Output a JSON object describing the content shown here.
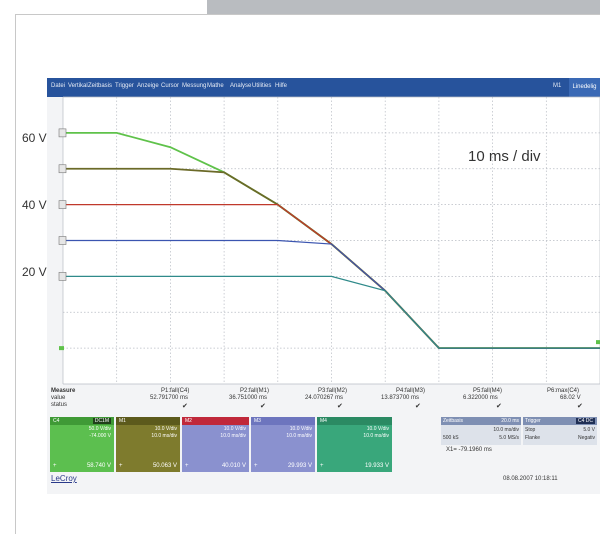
{
  "menu": {
    "items": [
      "Datei",
      "Vertikal",
      "Zeitbasis",
      "Trigger",
      "Anzeige",
      "Cursor",
      "Messung",
      "Mathe",
      "Analyse",
      "Utilities",
      "Hilfe"
    ],
    "id_label": "M1",
    "right_button": "Linedelig"
  },
  "axis": {
    "y_labels": [
      "60 V",
      "40 V",
      "20 V"
    ]
  },
  "time_per_div": "10 ms / div",
  "measure": {
    "header": "Measure",
    "row_value": "value",
    "row_status": "status",
    "columns": [
      {
        "name": "P1:fall(C4)",
        "value": "52.791700 ms"
      },
      {
        "name": "P2:fall(M1)",
        "value": "36.751000 ms"
      },
      {
        "name": "P3:fall(M2)",
        "value": "24.070267 ms"
      },
      {
        "name": "P4:fall(M3)",
        "value": "13.873700 ms"
      },
      {
        "name": "P5:fall(M4)",
        "value": "6.322000 ms"
      },
      {
        "name": "P6:max(C4)",
        "value": "68.02 V"
      }
    ]
  },
  "channels": [
    {
      "name": "C4",
      "badge": "DC1M",
      "l1": "50.0 V/div",
      "l2": "-74.000 V",
      "l3": "",
      "footer": "58.740 V",
      "color": "#5cbf4f"
    },
    {
      "name": "M1",
      "badge": "",
      "l1": "10.0 V/div",
      "l2": "10.0 ms/div",
      "l3": "",
      "footer": "50.063 V",
      "color": "#7e7b2d"
    },
    {
      "name": "M2",
      "badge": "",
      "l1": "10.0 V/div",
      "l2": "10.0 ms/div",
      "l3": "",
      "footer": "40.010 V",
      "color": "#8a91cf"
    },
    {
      "name": "M3",
      "badge": "",
      "l1": "10.0 V/div",
      "l2": "10.0 ms/div",
      "l3": "",
      "footer": "29.993 V",
      "color": "#8a91cf"
    },
    {
      "name": "M4",
      "badge": "",
      "l1": "10.0 V/div",
      "l2": "10.0 ms/div",
      "l3": "",
      "footer": "19.933 V",
      "color": "#39a77b"
    }
  ],
  "timebase": {
    "label": "Zeitbasis",
    "value": "20.0 ms",
    "line2": "10.0 ms/div",
    "line3_a": "500 kS",
    "line3_b": "5.0 MS/s"
  },
  "trigger": {
    "label": "Trigger",
    "badge": "C4 DC",
    "line2_a": "Stop",
    "line2_b": "5.0 V",
    "line3_a": "Flanke",
    "line3_b": "Negativ"
  },
  "cursor": "X1= -79.1960 ms",
  "brand": "LeCroy",
  "timestamp": "08.08.2007 10:18:11",
  "chart_data": {
    "type": "line",
    "x": [
      0,
      10,
      20,
      30,
      40,
      50,
      60,
      70,
      80
    ],
    "series": [
      {
        "values": [
          60,
          60,
          56,
          49,
          40,
          29,
          16,
          0,
          0
        ],
        "color": "#5fc24a"
      },
      {
        "values": [
          50,
          50,
          50,
          49,
          40,
          29,
          16,
          0,
          0
        ],
        "color": "#6b6a28"
      },
      {
        "values": [
          40,
          40,
          40,
          40,
          40,
          29,
          16,
          0,
          0
        ],
        "color": "#c0392b"
      },
      {
        "values": [
          30,
          30,
          30,
          30,
          30,
          29,
          16,
          0,
          0
        ],
        "color": "#3b55b0"
      },
      {
        "values": [
          20,
          20,
          20,
          20,
          20,
          20,
          16,
          0,
          0
        ],
        "color": "#2f8a8a"
      }
    ],
    "grid": true,
    "ylim": [
      -10,
      70
    ],
    "xlim": [
      0,
      100
    ]
  }
}
